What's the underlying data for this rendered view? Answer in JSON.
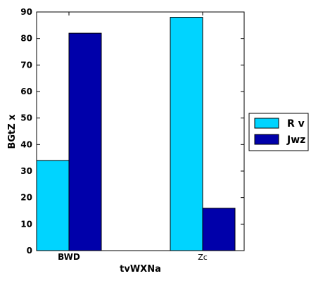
{
  "chart_data": {
    "type": "bar",
    "categories": [
      "BWD",
      "Zc"
    ],
    "series": [
      {
        "name": "R v",
        "values": [
          34,
          88
        ],
        "color": "#00d4ff"
      },
      {
        "name": "Jwz",
        "values": [
          82,
          16
        ],
        "color": "#0000aa"
      }
    ],
    "xlabel": "tvWXNa",
    "ylabel": "BGtZ x",
    "ylim": [
      0,
      90
    ],
    "yticks": [
      0,
      10,
      20,
      30,
      40,
      50,
      60,
      70,
      80,
      90
    ],
    "grid": false,
    "legend_position": "right"
  }
}
